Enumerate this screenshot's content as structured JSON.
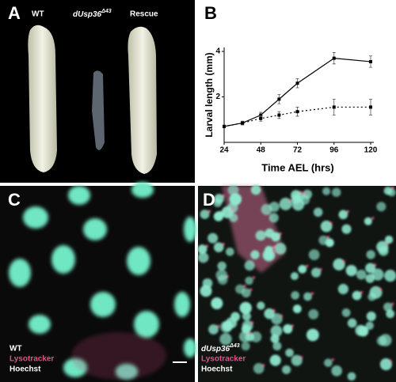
{
  "panels": {
    "a": {
      "letter": "A",
      "wt": "WT",
      "mutant": {
        "text": "dUsp36",
        "superscript": "Δ43"
      },
      "rescue": "Rescue"
    },
    "c": {
      "letter": "C",
      "genotype": "WT",
      "stain1": "Lysotracker",
      "stain2": "Hoechst"
    },
    "d": {
      "letter": "D",
      "genotype": {
        "text": "dUsp36",
        "superscript": "Δ43"
      },
      "stain1": "Lysotracker",
      "stain2": "Hoechst"
    }
  },
  "chart_data": {
    "type": "line",
    "letter": "B",
    "x_label": "Time AEL (hrs)",
    "y_label": "Larval length (mm)",
    "x": [
      24,
      36,
      48,
      60,
      72,
      96,
      120
    ],
    "xlim": [
      24,
      120
    ],
    "xticks": [
      24,
      48,
      72,
      96,
      120
    ],
    "ylim": [
      0,
      4
    ],
    "yticks": [
      2,
      4
    ],
    "series": [
      {
        "color": "#000000",
        "style": "solid",
        "values": [
          0.7,
          0.85,
          1.2,
          1.9,
          2.6,
          3.7,
          3.55
        ],
        "errors": [
          0.05,
          0.08,
          0.12,
          0.2,
          0.2,
          0.25,
          0.25
        ]
      },
      {
        "color": "#000000",
        "style": "dotted",
        "values": [
          0.7,
          0.85,
          1.05,
          1.2,
          1.35,
          1.55,
          1.55
        ],
        "errors": [
          0.05,
          0.08,
          0.12,
          0.15,
          0.2,
          0.35,
          0.35
        ]
      }
    ]
  }
}
